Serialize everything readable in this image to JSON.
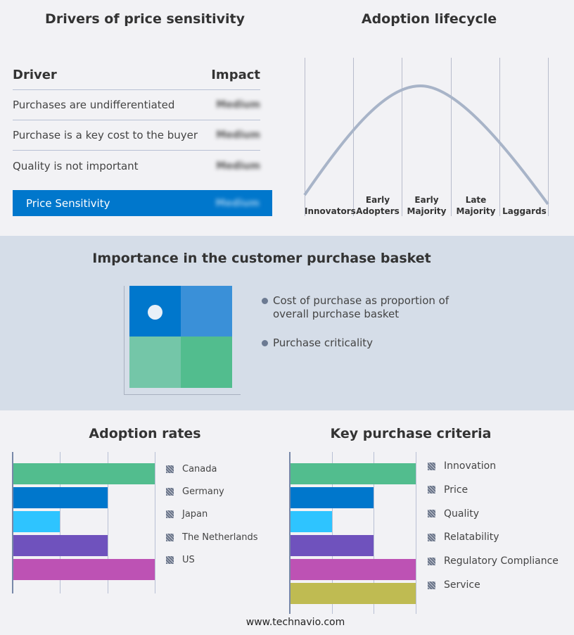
{
  "drivers": {
    "title": "Drivers of price sensitivity",
    "col_driver": "Driver",
    "col_impact": "Impact",
    "rows": [
      {
        "driver": "Purchases are undifferentiated",
        "impact": "Medium"
      },
      {
        "driver": "Purchase is a key cost to the buyer",
        "impact": "Medium"
      },
      {
        "driver": "Quality is not important",
        "impact": "Medium"
      }
    ],
    "summary": {
      "label": "Price Sensitivity",
      "impact": "Medium"
    },
    "accent": "#0077cc"
  },
  "lifecycle": {
    "title": "Adoption lifecycle",
    "stages": [
      "Innovators",
      "Early Adopters",
      "Early Majority",
      "Late Majority",
      "Laggards"
    ],
    "highlighted_stage": "Early Majority",
    "curve_color": "#a8b4c8"
  },
  "basket": {
    "title": "Importance in the customer purchase basket",
    "bullets": [
      "Cost of purchase as proportion of overall purchase basket",
      "Purchase criticality"
    ],
    "position": "top-left",
    "colors": [
      "#0077cc",
      "#3a90d8",
      "#74c6a8",
      "#52bd8e"
    ]
  },
  "chart_data": [
    {
      "type": "bar",
      "orientation": "horizontal",
      "title": "Adoption rates",
      "categories": [
        "Canada",
        "Germany",
        "Japan",
        "The Netherlands",
        "US"
      ],
      "values": [
        3,
        2,
        1,
        2,
        3
      ],
      "xlim": [
        0,
        3
      ],
      "grid": true,
      "legend": "right",
      "colors": [
        "#52bd8e",
        "#0077cc",
        "#2ec4ff",
        "#6f52bd",
        "#bd52b4"
      ]
    },
    {
      "type": "bar",
      "orientation": "horizontal",
      "title": "Key purchase criteria",
      "categories": [
        "Innovation",
        "Price",
        "Quality",
        "Relatability",
        "Regulatory Compliance",
        "Service"
      ],
      "values": [
        3,
        2,
        1,
        2,
        3,
        3
      ],
      "xlim": [
        0,
        3
      ],
      "grid": true,
      "legend": "right",
      "colors": [
        "#52bd8e",
        "#0077cc",
        "#2ec4ff",
        "#6f52bd",
        "#bd52b4",
        "#bfbb52"
      ]
    }
  ],
  "footer": "www.technavio.com"
}
